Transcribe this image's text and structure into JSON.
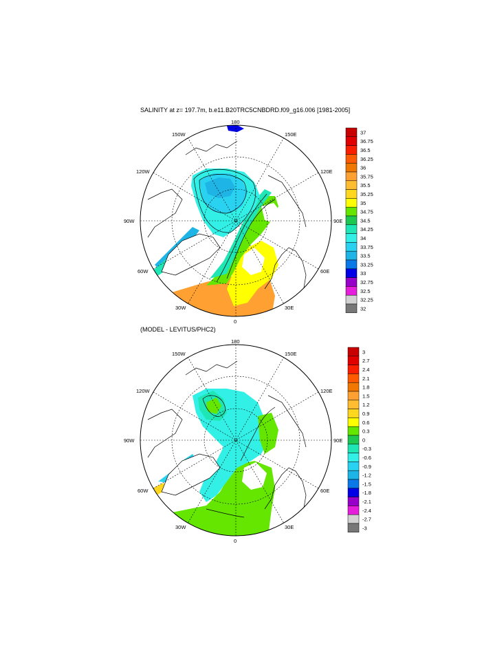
{
  "panels": [
    {
      "id": "salinity",
      "title": "SALINITY at z= 197.7m, b.e11.B20TRC5CNBDRD.f09_g16.006 [1981-2005]",
      "colorbar": {
        "labels": [
          "37",
          "36.75",
          "36.5",
          "36.25",
          "36",
          "35.75",
          "35.5",
          "35.25",
          "35",
          "34.75",
          "34.5",
          "34.25",
          "34",
          "33.75",
          "33.5",
          "33.25",
          "33",
          "32.75",
          "32.5",
          "32.25",
          "32"
        ],
        "colors": [
          "#c80000",
          "#e10000",
          "#fa1e00",
          "#ff5a00",
          "#f07800",
          "#ffa032",
          "#ffbe32",
          "#ffd71e",
          "#ffff00",
          "#64e600",
          "#1ec850",
          "#1ee6b4",
          "#32f0e6",
          "#28d2f0",
          "#1eb4e6",
          "#0a78e6",
          "#0000e6",
          "#9600c8",
          "#e61edc",
          "#d2d2d2",
          "#787878"
        ]
      }
    },
    {
      "id": "difference",
      "title": "(MODEL - LEVITUS/PHC2)",
      "colorbar": {
        "labels": [
          "3",
          "2.7",
          "2.4",
          "2.1",
          "1.8",
          "1.5",
          "1.2",
          "0.9",
          "0.6",
          "0.3",
          "0",
          "-0.3",
          "-0.6",
          "-0.9",
          "-1.2",
          "-1.5",
          "-1.8",
          "-2.1",
          "-2.4",
          "-2.7",
          "-3"
        ],
        "colors": [
          "#c80000",
          "#e10000",
          "#fa1e00",
          "#ff5a00",
          "#f07800",
          "#ffa032",
          "#ffbe32",
          "#ffd71e",
          "#ffff00",
          "#64e600",
          "#1ec850",
          "#1ee6b4",
          "#32f0e6",
          "#28d2f0",
          "#1eb4e6",
          "#0a78e6",
          "#0000e6",
          "#9600c8",
          "#e61edc",
          "#d2d2d2",
          "#787878"
        ]
      }
    }
  ],
  "longitude_labels": {
    "top": "180",
    "bottom": "0",
    "left": "90W",
    "right": "90E",
    "upper_left_1": "150W",
    "upper_left_2": "120W",
    "upper_right_1": "150E",
    "upper_right_2": "120E",
    "lower_left_1": "60W",
    "lower_left_2": "30W",
    "lower_right_1": "60E",
    "lower_right_2": "30E"
  }
}
